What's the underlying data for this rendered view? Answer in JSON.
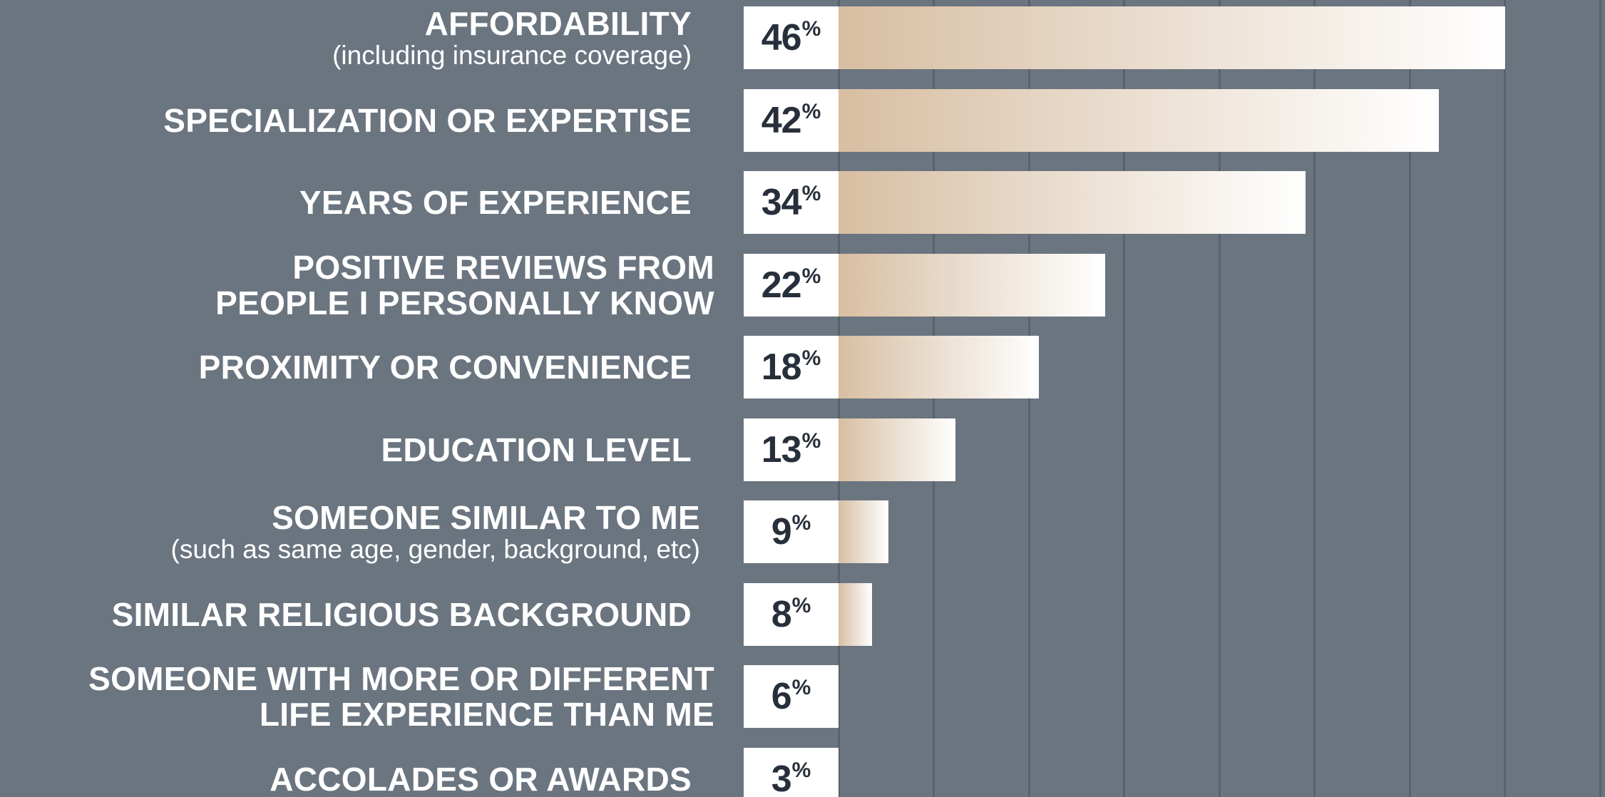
{
  "colors": {
    "background": "#6b7580",
    "gridline": "#59626b",
    "bar_start": "#d8bea2",
    "bar_end": "#ffffff",
    "value_text": "#262f3a",
    "label_text": "#ffffff"
  },
  "chart_data": {
    "type": "bar",
    "orientation": "horizontal",
    "title": "",
    "xlabel": "",
    "ylabel": "",
    "grid": true,
    "xlim": [
      0,
      46
    ],
    "value_suffix": "%",
    "categories": [
      {
        "label": "AFFORDABILITY",
        "sublabel": "(including insurance coverage)"
      },
      {
        "label": "SPECIALIZATION OR EXPERTISE",
        "sublabel": ""
      },
      {
        "label": "YEARS OF EXPERIENCE",
        "sublabel": ""
      },
      {
        "label": "POSITIVE REVIEWS FROM\nPEOPLE I PERSONALLY KNOW",
        "sublabel": ""
      },
      {
        "label": "PROXIMITY OR CONVENIENCE",
        "sublabel": ""
      },
      {
        "label": "EDUCATION LEVEL",
        "sublabel": ""
      },
      {
        "label": "SOMEONE SIMILAR TO ME",
        "sublabel": "(such as same age, gender, background, etc)"
      },
      {
        "label": "SIMILAR RELIGIOUS BACKGROUND",
        "sublabel": ""
      },
      {
        "label": "SOMEONE WITH MORE OR DIFFERENT\nLIFE EXPERIENCE THAN ME",
        "sublabel": ""
      },
      {
        "label": "ACCOLADES OR AWARDS",
        "sublabel": ""
      }
    ],
    "values": [
      46,
      42,
      34,
      22,
      18,
      13,
      9,
      8,
      6,
      3
    ]
  }
}
